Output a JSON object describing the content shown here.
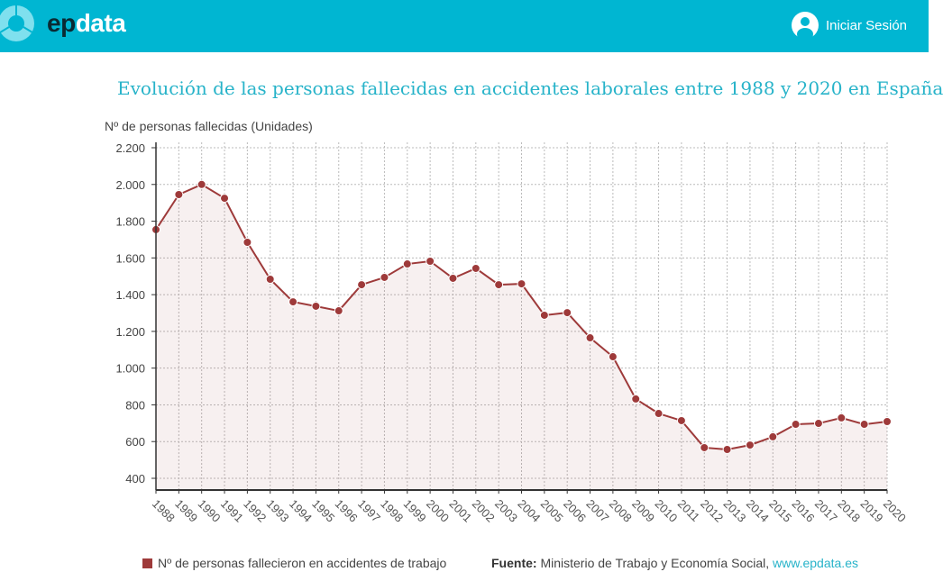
{
  "header": {
    "brand_ep": "ep",
    "brand_data": "data",
    "login_label": "Iniciar Sesión"
  },
  "colors": {
    "header": "#00b6d2",
    "series": "#9e3a3a",
    "title": "#27b3c9"
  },
  "footer": {
    "source_label": "Fuente:",
    "source_text": "Ministerio de Trabajo y Economía Social,",
    "source_link": "www.epdata.es"
  },
  "chart_data": {
    "type": "line",
    "title": "Evolución de las personas fallecidas en accidentes laborales entre 1988 y 2020 en España",
    "ylabel": "Nº de personas fallecidas (Unidades)",
    "xlabel": "",
    "ylim": [
      336,
      2200
    ],
    "yticks": [
      400,
      600,
      800,
      1000,
      1200,
      1400,
      1600,
      1800,
      2000,
      2200
    ],
    "ytick_labels": [
      "400",
      "600",
      "800",
      "1.000",
      "1.200",
      "1.400",
      "1.600",
      "1.800",
      "2.000",
      "2.200"
    ],
    "grid": true,
    "legend": "bottom-left",
    "categories": [
      "1988",
      "1989",
      "1990",
      "1991",
      "1992",
      "1993",
      "1994",
      "1995",
      "1996",
      "1997",
      "1998",
      "1999",
      "2000",
      "2001",
      "2002",
      "2003",
      "2004",
      "2005",
      "2006",
      "2007",
      "2008",
      "2009",
      "2010",
      "2011",
      "2012",
      "2013",
      "2014",
      "2015",
      "2016",
      "2017",
      "2018",
      "2019",
      "2020"
    ],
    "series": [
      {
        "name": "Nº de personas fallecieron en accidentes de trabajo",
        "values": [
          1754,
          1945,
          2000,
          1925,
          1685,
          1484,
          1361,
          1337,
          1312,
          1454,
          1494,
          1567,
          1582,
          1489,
          1543,
          1454,
          1459,
          1288,
          1302,
          1165,
          1062,
          832,
          753,
          714,
          567,
          557,
          581,
          626,
          694,
          699,
          729,
          694,
          709
        ]
      }
    ]
  }
}
